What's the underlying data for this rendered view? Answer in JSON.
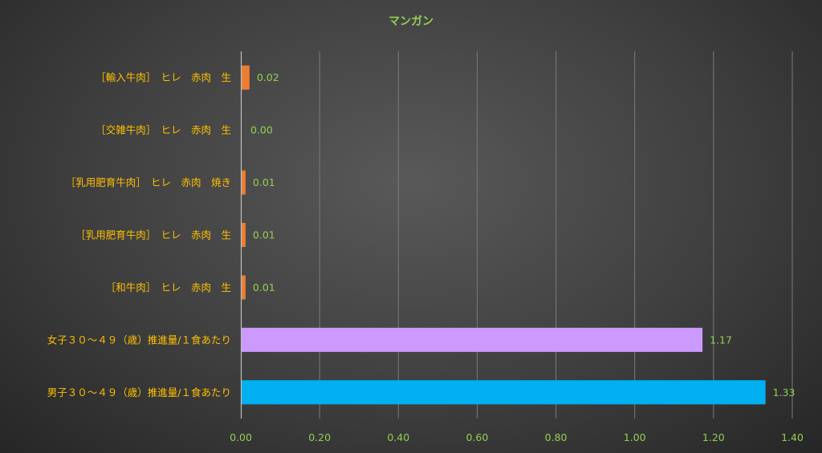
{
  "chart_data": {
    "type": "bar",
    "orientation": "horizontal",
    "title": "マンガン",
    "categories": [
      "［輸入牛肉］　ヒレ　赤肉　生",
      "［交雑牛肉］　ヒレ　赤肉　生",
      "［乳用肥育牛肉］　ヒレ　赤肉　焼き",
      "［乳用肥育牛肉］　ヒレ　赤肉　生",
      "［和牛肉］　ヒレ　赤肉　生",
      "女子３０～４９（歳）推進量/１食あたり",
      "男子３０～４９（歳）推進量/１食あたり"
    ],
    "values": [
      0.02,
      0.0,
      0.01,
      0.01,
      0.01,
      1.17,
      1.33
    ],
    "value_labels": [
      "0.02",
      "0.00",
      "0.01",
      "0.01",
      "0.01",
      "1.17",
      "1.33"
    ],
    "bar_colors": [
      "#ed7d31",
      "#ed7d31",
      "#ed7d31",
      "#ed7d31",
      "#ed7d31",
      "#cc99ff",
      "#00b0f0"
    ],
    "xlim": [
      0,
      1.4
    ],
    "x_ticks": [
      "0.00",
      "0.20",
      "0.40",
      "0.60",
      "0.80",
      "1.00",
      "1.20",
      "1.40"
    ],
    "grid": true,
    "xlabel": "",
    "ylabel": ""
  }
}
